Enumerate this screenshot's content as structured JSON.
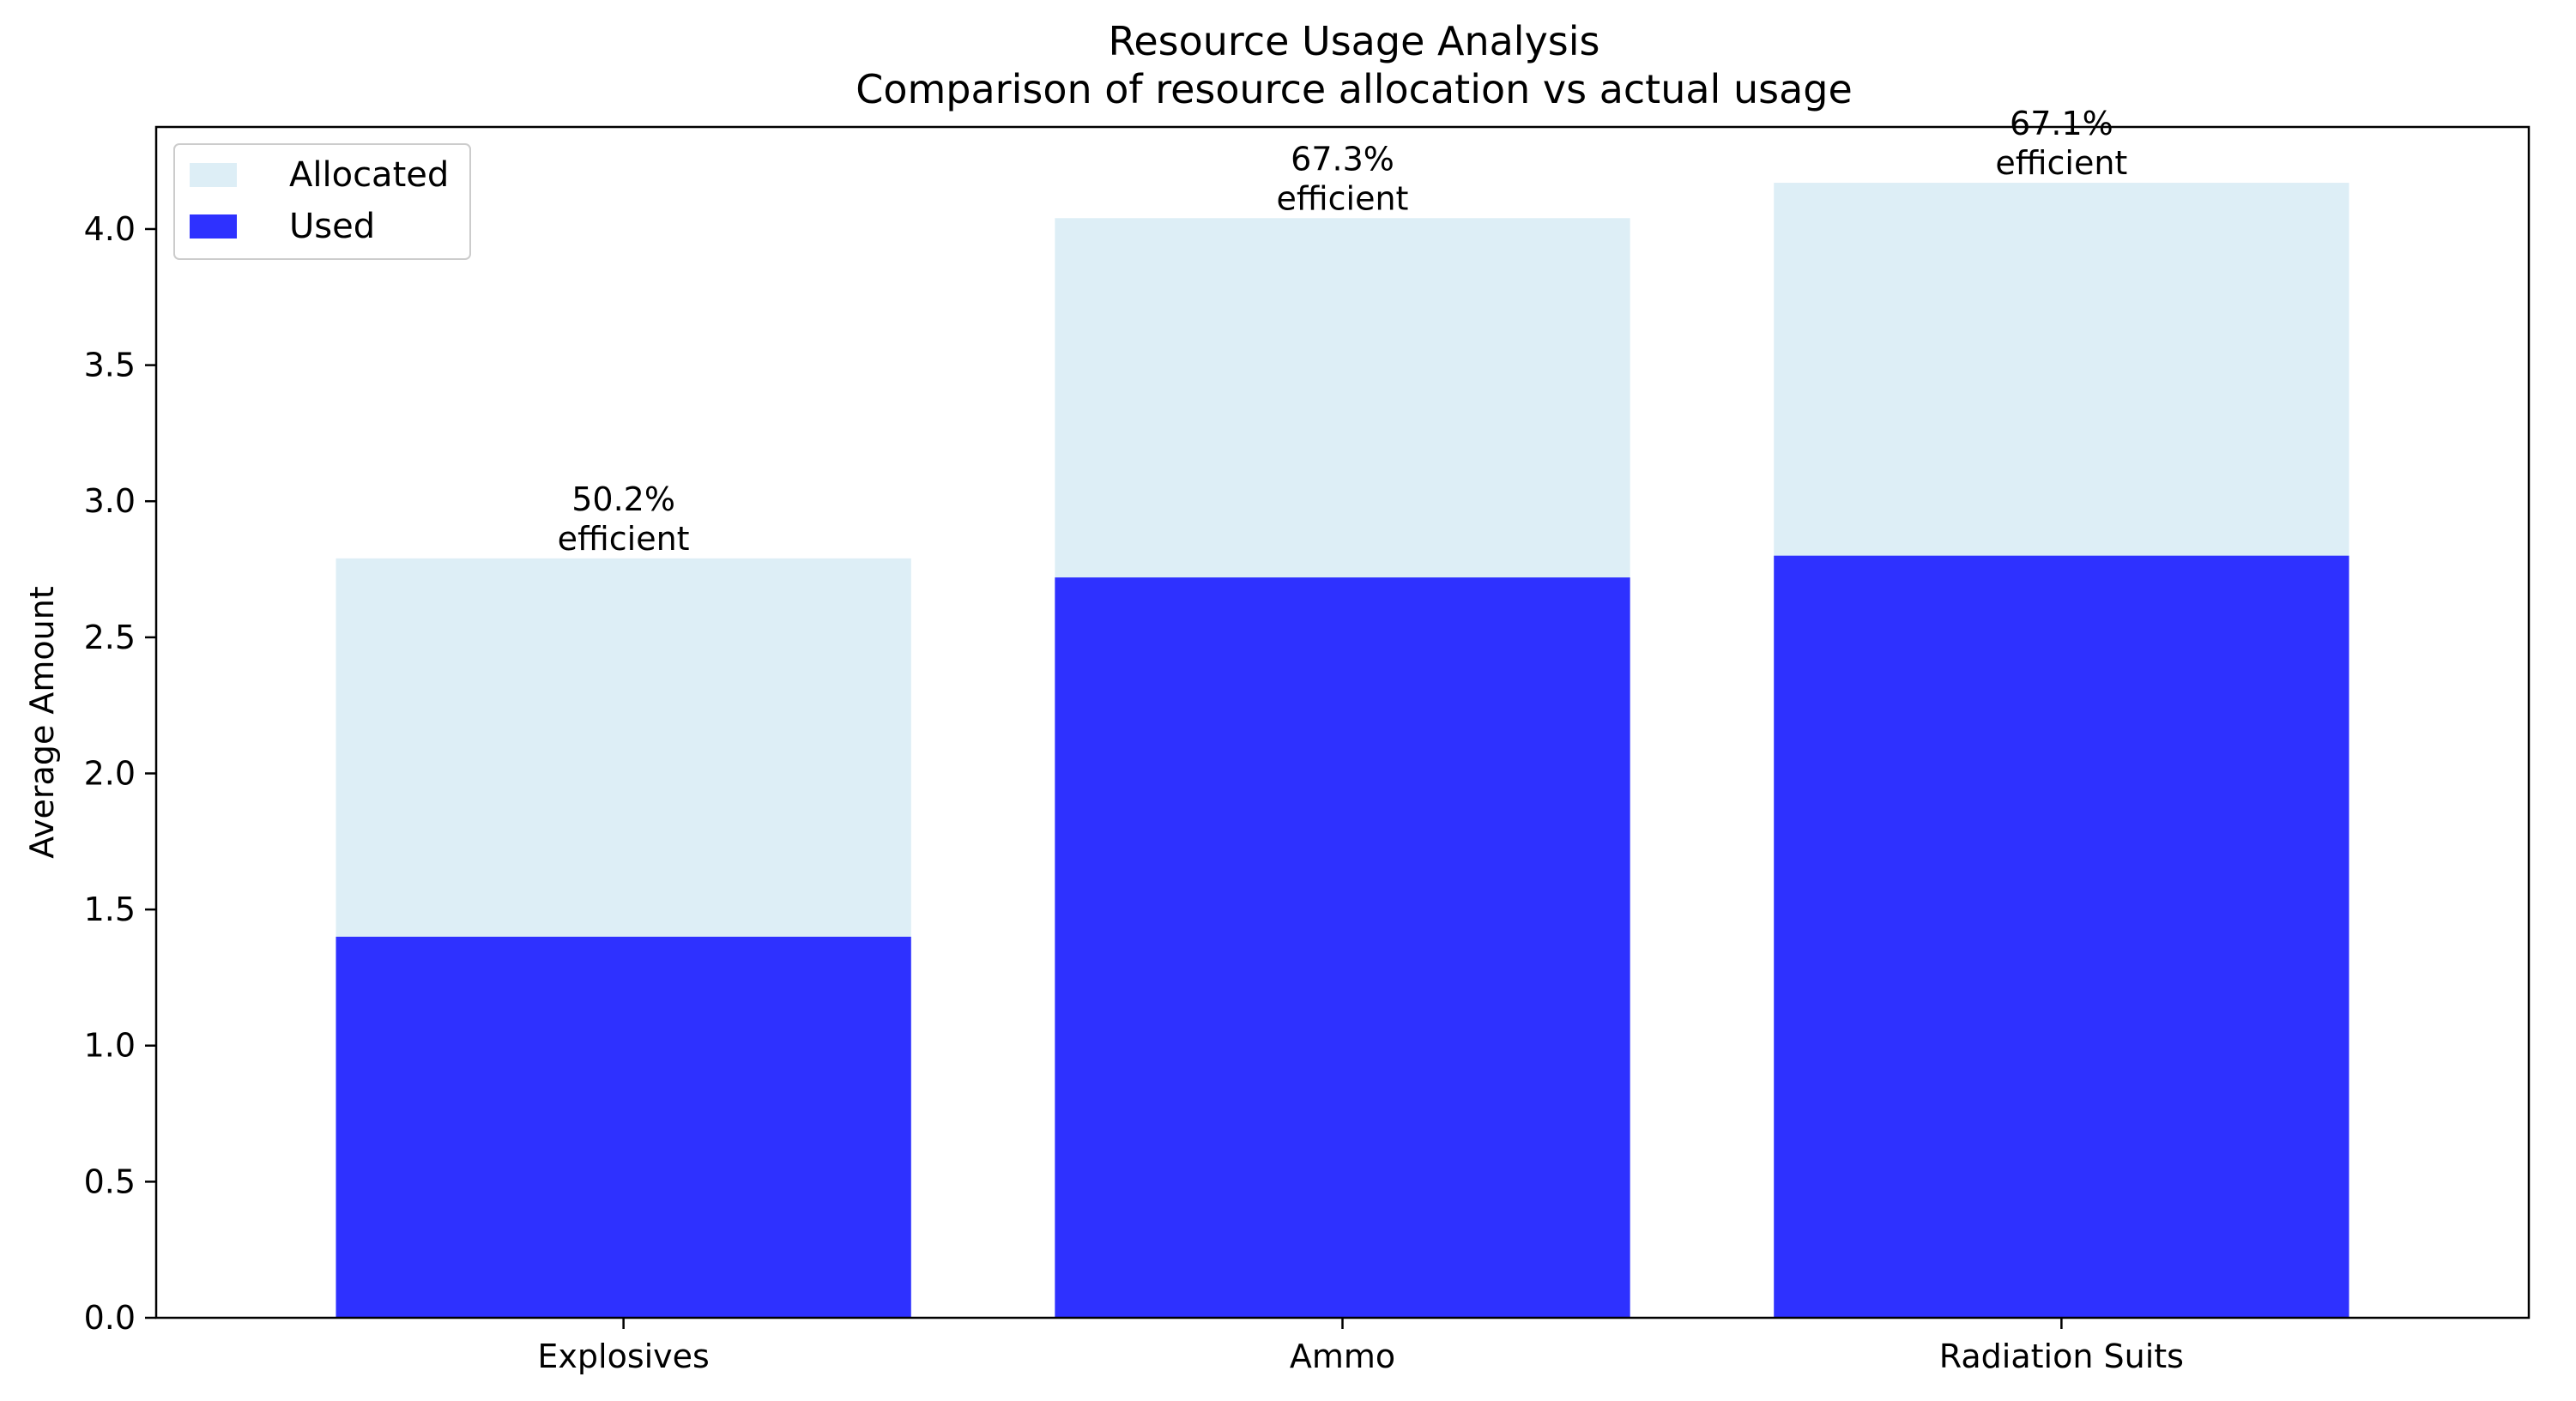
{
  "chart_data": {
    "type": "bar",
    "title": "Resource Usage Analysis",
    "subtitle": "Comparison of resource allocation vs actual usage",
    "xlabel": "",
    "ylabel": "Average Amount",
    "categories": [
      "Explosives",
      "Ammo",
      "Radiation Suits"
    ],
    "series": [
      {
        "name": "Allocated",
        "values": [
          2.79,
          4.04,
          4.17
        ],
        "color": "#ddeef6"
      },
      {
        "name": "Used",
        "values": [
          1.4,
          2.72,
          2.8
        ],
        "color": "#2e31ff"
      }
    ],
    "annotations": [
      {
        "line1": "50.2%",
        "line2": "efficient"
      },
      {
        "line1": "67.3%",
        "line2": "efficient"
      },
      {
        "line1": "67.1%",
        "line2": "efficient"
      }
    ],
    "ylim": [
      0,
      4.375
    ],
    "yticks": [
      "0.0",
      "0.5",
      "1.0",
      "1.5",
      "2.0",
      "2.5",
      "3.0",
      "3.5",
      "4.0"
    ],
    "grid": false,
    "legend_position": "top-left"
  }
}
